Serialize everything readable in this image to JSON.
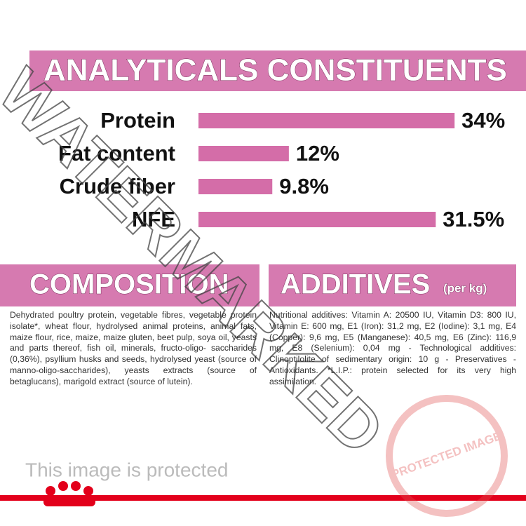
{
  "chart_data": {
    "type": "bar",
    "title": "ANALYTICALS CONSTITUENTS",
    "categories": [
      "Protein",
      "Fat content",
      "Crude fiber",
      "NFE"
    ],
    "values": [
      34,
      12,
      9.8,
      31.5
    ],
    "value_labels": [
      "34%",
      "12%",
      "9.8%",
      "31.5%"
    ],
    "color": "#d46da8"
  },
  "composition": {
    "title": "COMPOSITION",
    "text": "Dehydrated poultry protein, vegetable fibres, vegetable protein isolate*, wheat flour, hydrolysed animal proteins, animal fats, maize flour, rice, maize, maize gluten, beet pulp, soya oil, yeasts and parts thereof, fish oil, minerals, fructo-oligo- saccharides (0,36%), psyllium husks and seeds, hydrolysed yeast (source of manno-oligo-saccharides), yeasts extracts (source of betaglucans), marigold extract (source of lutein)."
  },
  "additives": {
    "title": "ADDITIVES",
    "unit": "(per kg)",
    "text": "Nutritional additives: Vitamin A: 20500 IU, Vitamin D3: 800 IU, Vitamin E: 600 mg, E1 (Iron): 31,2 mg, E2 (Iodine): 3,1 mg, E4 (Copper): 9,6 mg, E5 (Manganese): 40,5 mg, E6 (Zinc): 116,9 mg, E8 (Selenium): 0,04 mg - Technological additives: Clinoptilolite of sedimentary origin: 10 g - Preservatives - Antioxidants. *L.I.P.: protein selected for its very high assimilation."
  },
  "watermark": {
    "text": "WATERMARKED",
    "notice": "This image is protected",
    "stamp": "PROTECTED IMAGE"
  }
}
